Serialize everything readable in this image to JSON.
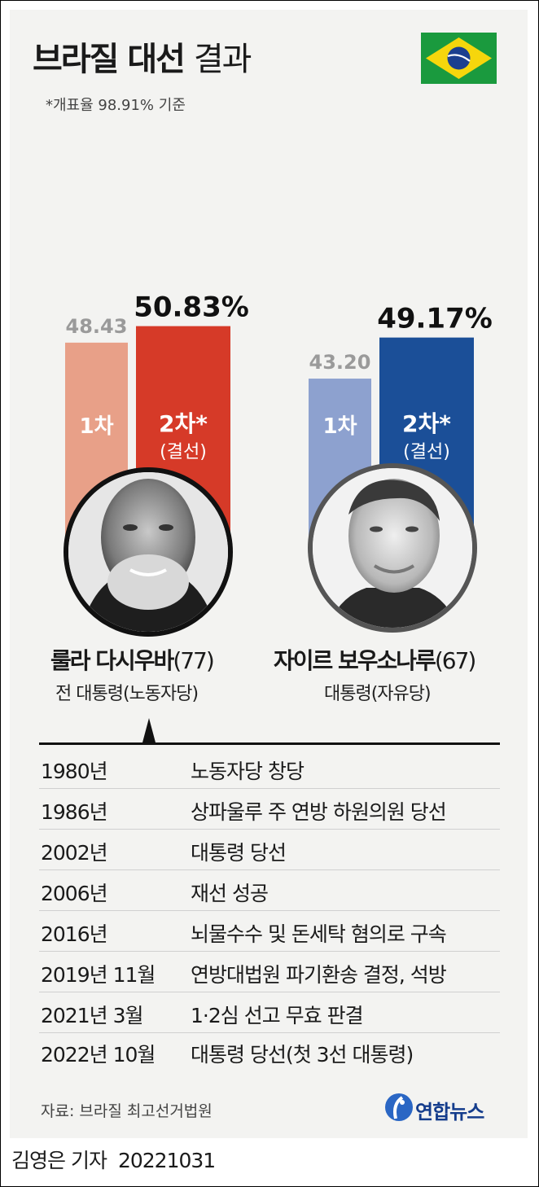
{
  "title": {
    "bold": "브라질 대선",
    "light": "결과"
  },
  "subtitle": "*개표율 98.91% 기준",
  "colors": {
    "lula_round1": "#e8a088",
    "lula_round2": "#d63a28",
    "bolsonaro_round1": "#8da1cf",
    "bolsonaro_round2": "#1b4f98",
    "flag_green": "#1a9a3e",
    "flag_yellow": "#f6d60c",
    "flag_blue": "#1b3f8f"
  },
  "chart_data": {
    "type": "bar",
    "groups": [
      "룰라 다시우바",
      "자이르 보우소나루"
    ],
    "series": [
      {
        "name": "1차",
        "values": [
          48.43,
          43.2
        ]
      },
      {
        "name": "2차* (결선)",
        "values": [
          50.83,
          49.17
        ]
      }
    ],
    "value_labels": [
      [
        "48.43",
        "50.83%"
      ],
      [
        "43.20",
        "49.17%"
      ]
    ],
    "bar_labels": {
      "round1": "1차",
      "round2_line1": "2차*",
      "round2_line2": "(결선)"
    }
  },
  "candidates": [
    {
      "name": "룰라 다시우바",
      "age": "(77)",
      "role": "전 대통령(노동자당)",
      "photo_icon": "lula-portrait-icon"
    },
    {
      "name": "자이르 보우소나루",
      "age": "(67)",
      "role": "대통령(자유당)",
      "photo_icon": "bolsonaro-portrait-icon"
    }
  ],
  "timeline": [
    {
      "year": "1980년",
      "event": "노동자당 창당"
    },
    {
      "year": "1986년",
      "event": "상파울루 주 연방 하원의원 당선"
    },
    {
      "year": "2002년",
      "event": "대통령 당선"
    },
    {
      "year": "2006년",
      "event": "재선 성공"
    },
    {
      "year": "2016년",
      "event": "뇌물수수 및 돈세탁 혐의로 구속"
    },
    {
      "year": "2019년 11월",
      "event": "연방대법원 파기환송 결정, 석방"
    },
    {
      "year": "2021년 3월",
      "event": "1·2심 선고 무효 판결"
    },
    {
      "year": "2022년 10월",
      "event": "대통령 당선(첫 3선 대통령)"
    }
  ],
  "source": "자료: 브라질 최고선거법원",
  "logo": {
    "text": "연합뉴스",
    "icon": "yonhap-logo-icon"
  },
  "byline": {
    "author": "김영은 기자",
    "date": "20221031"
  }
}
